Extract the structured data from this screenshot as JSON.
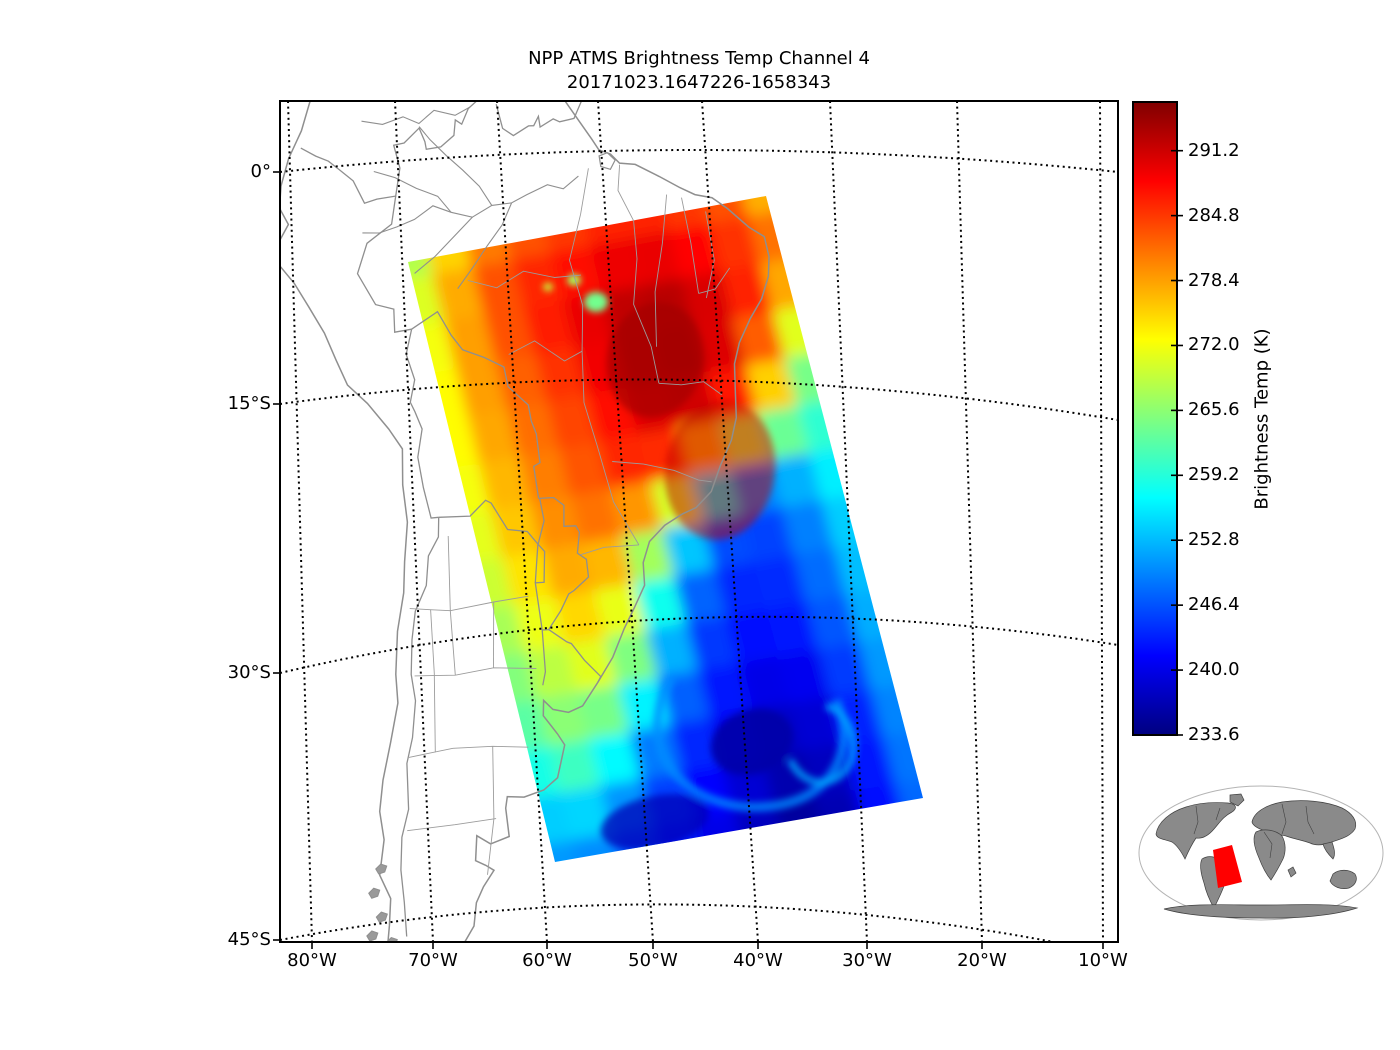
{
  "figure": {
    "title_line1": "NPP ATMS Brightness Temp Channel 4",
    "title_line2": "20171023.1647226-1658343",
    "background": "#ffffff"
  },
  "axes": {
    "lat_tick_labels": [
      "0°",
      "15°S",
      "30°S",
      "45°S"
    ],
    "lon_tick_labels": [
      "80°W",
      "70°W",
      "60°W",
      "50°W",
      "40°W",
      "30°W",
      "20°W",
      "10°W"
    ]
  },
  "colorbar": {
    "axis_label": "Brightness Temp (K)",
    "tick_labels": [
      "291.2",
      "284.8",
      "278.4",
      "272.0",
      "265.6",
      "259.2",
      "252.8",
      "246.4",
      "240.0",
      "233.6"
    ],
    "tick_values": [
      291.2,
      284.8,
      278.4,
      272.0,
      265.6,
      259.2,
      252.8,
      246.4,
      240.0,
      233.6
    ],
    "vmin": 233.6,
    "vmax": 296.0,
    "colormap": "jet"
  },
  "map": {
    "gridline_color": "#000000",
    "coastline_color": "#8f8f8f",
    "state_line_color": "#9c9c9c",
    "frame_color": "#000000"
  },
  "inset": {
    "land_color": "#8a8a8a",
    "coast_color": "#404040",
    "swath_highlight_color": "#ff0000",
    "outline_color": "#b4b4b4"
  },
  "chart_data": {
    "type": "heatmap",
    "title": "NPP ATMS Brightness Temp Channel 4",
    "subtitle_date_range": "20171023.1647226-1658343",
    "x_axis": {
      "label_type": "longitude",
      "tick_labels": [
        "80°W",
        "70°W",
        "60°W",
        "50°W",
        "40°W",
        "30°W",
        "20°W",
        "10°W"
      ],
      "tick_values_deg_east": [
        -80,
        -70,
        -60,
        -50,
        -40,
        -30,
        -20,
        -10
      ]
    },
    "y_axis": {
      "label_type": "latitude",
      "tick_labels": [
        "0°",
        "15°S",
        "30°S",
        "45°S"
      ],
      "tick_values_deg_north": [
        0,
        -15,
        -30,
        -45
      ]
    },
    "colorbar": {
      "label": "Brightness Temp (K)",
      "ticks": [
        291.2,
        284.8,
        278.4,
        272.0,
        265.6,
        259.2,
        252.8,
        246.4,
        240.0,
        233.6
      ],
      "vmin": 233.6,
      "vmax": 296.0,
      "colormap": "jet"
    },
    "swath_grid": {
      "note": "Approximate ATMS channel-4 brightness temperatures (K) sampled on a 15x11 lattice spanning the satellite swath; rows run north to south, columns west to east.",
      "rows": 15,
      "cols": 11,
      "values": [
        [
          263,
          270,
          277,
          281,
          283,
          284,
          285,
          284,
          283,
          281,
          266
        ],
        [
          266,
          273,
          281,
          284,
          285,
          287,
          288,
          287,
          286,
          283,
          280
        ],
        [
          268,
          275,
          282,
          286,
          288,
          290,
          292,
          291,
          288,
          284,
          278
        ],
        [
          269,
          276,
          281,
          284,
          288,
          292,
          294,
          293,
          290,
          283,
          267
        ],
        [
          270,
          276,
          281,
          283,
          286,
          290,
          293,
          292,
          286,
          271,
          262
        ],
        [
          270,
          275,
          280,
          282,
          285,
          288,
          290,
          289,
          281,
          264,
          260
        ],
        [
          269,
          274,
          279,
          281,
          284,
          286,
          278,
          252,
          253,
          256,
          259
        ],
        [
          268,
          273,
          278,
          280,
          280,
          266,
          250,
          245,
          248,
          252,
          257
        ],
        [
          266,
          271,
          275,
          278,
          270,
          252,
          246,
          243,
          246,
          251,
          256
        ],
        [
          264,
          268,
          272,
          275,
          262,
          248,
          244,
          242,
          245,
          250,
          255
        ],
        [
          262,
          266,
          268,
          268,
          254,
          245,
          242,
          240,
          243,
          249,
          254
        ],
        [
          259,
          263,
          265,
          256,
          247,
          243,
          240,
          238,
          241,
          247,
          253
        ],
        [
          254,
          258,
          257,
          249,
          244,
          241,
          238,
          236,
          240,
          246,
          252
        ],
        [
          251,
          253,
          250,
          246,
          242,
          239,
          237,
          235,
          239,
          245,
          251
        ],
        [
          249,
          250,
          247,
          244,
          241,
          238,
          236,
          234,
          239,
          245,
          250
        ]
      ]
    },
    "features": [
      {
        "name": "vortex-core-cold-blob",
        "temp_K": 236
      },
      {
        "name": "secondary-cold-streak",
        "temp_K": 237
      },
      {
        "name": "cyclonic-cyan-filament",
        "temp_K": 250
      },
      {
        "name": "inner-cyan-filament",
        "temp_K": 252
      },
      {
        "name": "warm-land-green-spot-large",
        "temp_K": 264
      },
      {
        "name": "warm-land-green-spot-small1",
        "temp_K": 267
      },
      {
        "name": "warm-land-green-spot-small2",
        "temp_K": 269
      },
      {
        "name": "hot-core-patch",
        "temp_K": 294
      }
    ]
  }
}
